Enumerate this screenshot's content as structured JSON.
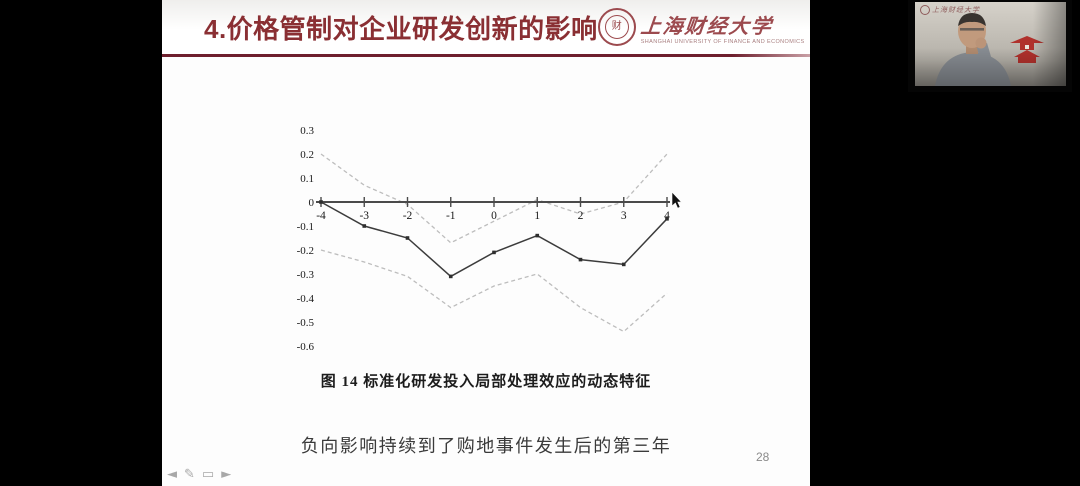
{
  "slide": {
    "title": "4.价格管制对企业研发创新的影响",
    "logo": {
      "name": "上海财经大学",
      "subtitle": "SHANGHAI UNIVERSITY OF FINANCE AND ECONOMICS",
      "seal_glyph": "财"
    },
    "figure_caption": "图 14 标准化研发投入局部处理效应的动态特征",
    "note": "负向影响持续到了购地事件发生后的第三年",
    "page_number": "28"
  },
  "toolbar": {
    "icons": [
      {
        "name": "previous-slide",
        "glyph": "◄"
      },
      {
        "name": "pen",
        "glyph": "✎"
      },
      {
        "name": "slide-menu",
        "glyph": "▭"
      },
      {
        "name": "next-slide",
        "glyph": "►"
      }
    ]
  },
  "webcam": {
    "logo_text": "上海财经大学"
  },
  "chart_data": {
    "type": "line",
    "x": [
      -4,
      -3,
      -2,
      -1,
      0,
      1,
      2,
      3,
      4
    ],
    "xlim": [
      -4,
      4
    ],
    "ylim": [
      -0.6,
      0.3
    ],
    "xticks": [
      -4,
      -3,
      -2,
      -1,
      0,
      1,
      2,
      3,
      4
    ],
    "yticks": [
      0.3,
      0.2,
      0.1,
      0,
      -0.1,
      -0.2,
      -0.3,
      -0.4,
      -0.5,
      -0.6
    ],
    "grid": false,
    "legend": "none",
    "series": [
      {
        "name": "point-estimate",
        "line_style": "solid",
        "marker": "square",
        "color": "#3c3c3c",
        "values": [
          0,
          -0.1,
          -0.15,
          -0.31,
          -0.21,
          -0.14,
          -0.24,
          -0.26,
          -0.07
        ]
      },
      {
        "name": "confidence-upper",
        "line_style": "dashed",
        "marker": "none",
        "color": "#bdbdbd",
        "values": [
          0.2,
          0.07,
          -0.01,
          -0.17,
          -0.08,
          0.01,
          -0.05,
          0.0,
          0.2
        ]
      },
      {
        "name": "confidence-lower",
        "line_style": "dashed",
        "marker": "none",
        "color": "#bdbdbd",
        "values": [
          -0.2,
          -0.25,
          -0.31,
          -0.44,
          -0.35,
          -0.3,
          -0.44,
          -0.54,
          -0.38
        ]
      }
    ]
  },
  "colors": {
    "accent": "#8a2f33",
    "rule": "#6e1f2d",
    "logo": "#9c4a4e",
    "axis": "#4a4a4a",
    "note_text": "#3a3a3a",
    "page_number": "#8a8a8a",
    "pagoda": "#b0312c"
  }
}
